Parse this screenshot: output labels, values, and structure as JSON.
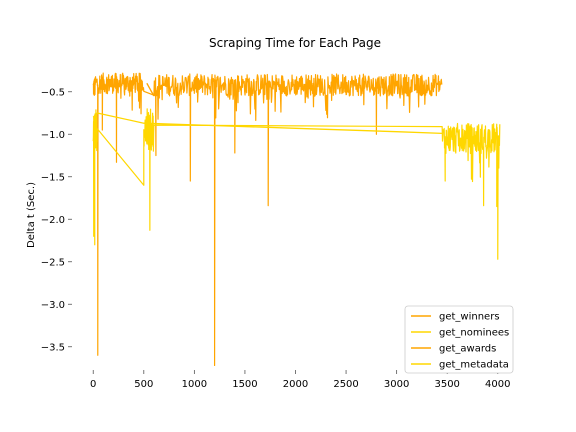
{
  "chart_data": {
    "type": "line",
    "title": "Scraping Time for Each Page",
    "xlabel": "",
    "ylabel": "Delta t (Sec.)",
    "xlim": [
      -200,
      4200
    ],
    "ylim": [
      -3.75,
      -0.15
    ],
    "x_ticks": [
      0,
      500,
      1000,
      1500,
      2000,
      2500,
      3000,
      3500,
      4000
    ],
    "x_tick_labels": [
      "0",
      "500",
      "1000",
      "1500",
      "2000",
      "2500",
      "3000",
      "3500",
      "4000"
    ],
    "y_ticks": [
      -0.5,
      -1.0,
      -1.5,
      -2.0,
      -2.5,
      -3.0,
      -3.5
    ],
    "y_tick_labels": [
      "−0.5",
      "−1.0",
      "−1.5",
      "−2.0",
      "−2.5",
      "−3.0",
      "−3.5"
    ],
    "grid": false,
    "legend_position": "lower-right",
    "series": [
      {
        "name": "get_winners",
        "color": "#FFA500",
        "segments": [
          {
            "x_start": 0,
            "x_end": 20,
            "y_center": -0.45,
            "y_spread": 0.12,
            "points": 20
          },
          {
            "x_start": 20,
            "x_end": 500,
            "y_center": -0.4,
            "y_spread": 0.12,
            "points": 160
          },
          {
            "x_start": 600,
            "x_end": 3450,
            "y_center": -0.42,
            "y_spread": 0.13,
            "points": 700
          }
        ],
        "spikes": [
          {
            "x": 45,
            "y": -3.6
          },
          {
            "x": 90,
            "y": -0.95
          },
          {
            "x": 230,
            "y": -1.33
          },
          {
            "x": 620,
            "y": -1.25
          },
          {
            "x": 960,
            "y": -1.55
          },
          {
            "x": 1200,
            "y": -3.72
          },
          {
            "x": 1400,
            "y": -1.22
          },
          {
            "x": 1730,
            "y": -1.84
          },
          {
            "x": 2800,
            "y": -1.0
          }
        ]
      },
      {
        "name": "get_nominees",
        "color": "#FFD700",
        "segments": [
          {
            "x_start": 0,
            "x_end": 40,
            "y_center": -0.95,
            "y_spread": 0.25,
            "points": 25
          },
          {
            "x_start": 500,
            "x_end": 600,
            "y_center": -0.95,
            "y_spread": 0.25,
            "points": 40
          },
          {
            "x_start": 3450,
            "x_end": 4020,
            "y_center": -1.05,
            "y_spread": 0.18,
            "points": 170
          }
        ],
        "spikes": [
          {
            "x": 5,
            "y": -2.2
          },
          {
            "x": 15,
            "y": -2.3
          },
          {
            "x": 500,
            "y": -1.6
          },
          {
            "x": 560,
            "y": -2.13
          },
          {
            "x": 3480,
            "y": -1.55
          },
          {
            "x": 3860,
            "y": -1.84
          },
          {
            "x": 3990,
            "y": -1.85
          },
          {
            "x": 4000,
            "y": -2.47
          }
        ]
      },
      {
        "name": "get_awards",
        "color": "#FFA500",
        "points": [
          [
            530,
            -0.4
          ],
          [
            600,
            -0.55
          ]
        ]
      },
      {
        "name": "get_metadata",
        "color": "#FFD700",
        "points": [
          [
            0,
            -0.8
          ],
          [
            40,
            -0.75
          ],
          [
            500,
            -0.87
          ],
          [
            1000,
            -0.89
          ],
          [
            2000,
            -0.93
          ],
          [
            3000,
            -0.97
          ],
          [
            3450,
            -0.99
          ]
        ]
      }
    ]
  }
}
